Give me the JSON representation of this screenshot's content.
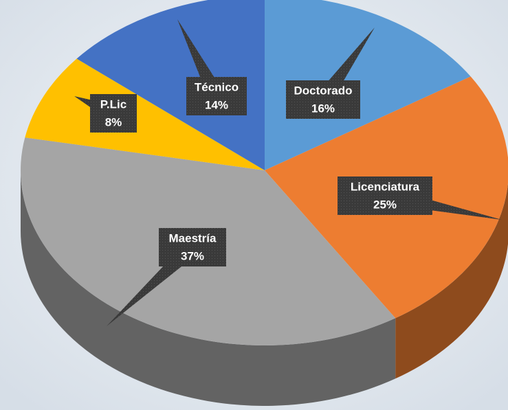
{
  "chart_data": {
    "type": "pie",
    "categories": [
      "Doctorado",
      "Licenciatura",
      "Maestría",
      "P.Lic",
      "Técnico"
    ],
    "values": [
      16,
      25,
      37,
      8,
      14
    ],
    "value_labels": [
      "16%",
      "25%",
      "37%",
      "8%",
      "14%"
    ],
    "colors": [
      "#5b9bd5",
      "#ed7d31",
      "#a5a5a5",
      "#ffc000",
      "#4472c4"
    ]
  }
}
